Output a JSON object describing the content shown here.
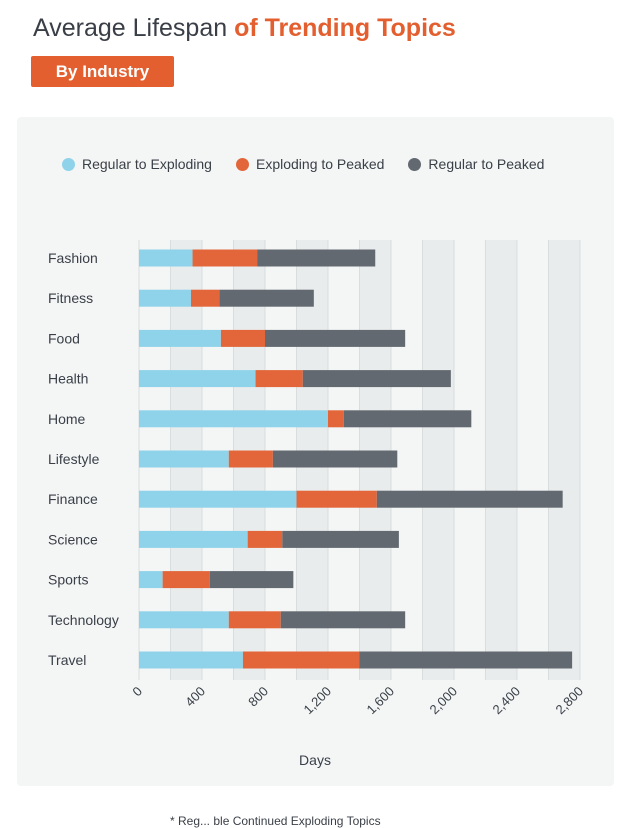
{
  "header": {
    "title_main": "Average Lifespan ",
    "title_accent": "of Trending Topics",
    "badge": "By Industry"
  },
  "footnote": "* Reg... ble Continued Exploding Topics",
  "colors": {
    "regular_to_exploding": "#8fd3ea",
    "exploding_to_peaked": "#e2663a",
    "regular_to_peaked": "#636970",
    "accent": "#e35f2f"
  },
  "chart_data": {
    "type": "bar",
    "orientation": "horizontal",
    "stacked": true,
    "categories": [
      "Fashion",
      "Fitness",
      "Food",
      "Health",
      "Home",
      "Lifestyle",
      "Finance",
      "Science",
      "Sports",
      "Technology",
      "Travel"
    ],
    "series": [
      {
        "name": "Regular to Exploding",
        "values": [
          340,
          330,
          520,
          740,
          1200,
          570,
          1000,
          690,
          150,
          570,
          660
        ]
      },
      {
        "name": "Exploding to Peaked",
        "values": [
          410,
          180,
          280,
          300,
          100,
          280,
          510,
          220,
          300,
          330,
          740
        ]
      },
      {
        "name": "Regular to Peaked",
        "values": [
          750,
          600,
          890,
          940,
          810,
          790,
          1180,
          740,
          530,
          790,
          1350
        ]
      }
    ],
    "xlabel": "Days",
    "xlim": [
      0,
      2800
    ],
    "xticks": [
      "0",
      "400",
      "800",
      "1,200",
      "1,600",
      "2,000",
      "2,400",
      "2,800"
    ],
    "grid": true,
    "legend_position": "top"
  }
}
